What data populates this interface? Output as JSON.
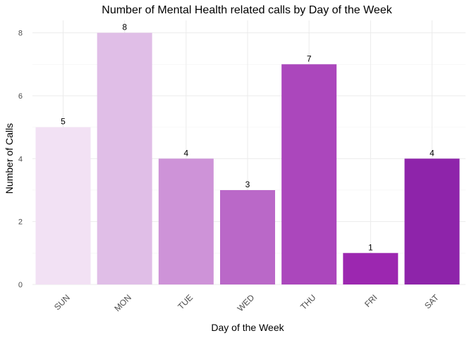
{
  "chart_data": {
    "type": "bar",
    "title": "Number of Mental Health related calls by Day of the Week",
    "xlabel": "Day of the Week",
    "ylabel": "Number of Calls",
    "categories": [
      "SUN",
      "MON",
      "TUE",
      "WED",
      "THU",
      "FRI",
      "SAT"
    ],
    "values": [
      5,
      8,
      4,
      3,
      7,
      1,
      4
    ],
    "data_labels": [
      "5",
      "8",
      "4",
      "3",
      "7",
      "1",
      "4"
    ],
    "colors": [
      "#f2e1f4",
      "#e0bee7",
      "#ce93d8",
      "#ba68c8",
      "#ab47bc",
      "#9c27b0",
      "#8e24aa"
    ],
    "ylim": [
      0,
      8
    ],
    "yticks": [
      0,
      2,
      4,
      6,
      8
    ],
    "ytick_labels": [
      "0",
      "2",
      "4",
      "6",
      "8"
    ],
    "grid": true,
    "legend": "none"
  }
}
